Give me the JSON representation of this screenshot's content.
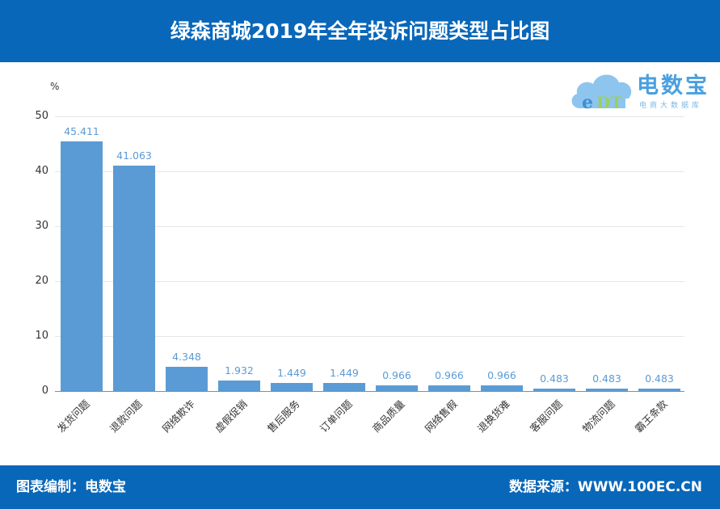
{
  "header": {
    "title": "绿森商城2019年全年投诉问题类型占比图"
  },
  "logo": {
    "mark": "eDT",
    "name": "电数宝",
    "subtitle": "电商大数据库"
  },
  "footer": {
    "left": "图表编制：电数宝",
    "right": "数据来源：WWW.100EC.CN"
  },
  "chart_data": {
    "type": "bar",
    "title": "绿森商城2019年全年投诉问题类型占比图",
    "xlabel": "",
    "ylabel": "%",
    "ylim": [
      0,
      50
    ],
    "yticks": [
      0,
      10,
      20,
      30,
      40,
      50
    ],
    "grid": true,
    "legend": "none",
    "categories": [
      "发货问题",
      "退款问题",
      "网络欺诈",
      "虚假促销",
      "售后服务",
      "订单问题",
      "商品质量",
      "网络售假",
      "退换货难",
      "客服问题",
      "物流问题",
      "霸王条款"
    ],
    "values": [
      45.411,
      41.063,
      4.348,
      1.932,
      1.449,
      1.449,
      0.966,
      0.966,
      0.966,
      0.483,
      0.483,
      0.483
    ],
    "value_labels": [
      "45.411",
      "41.063",
      "4.348",
      "1.932",
      "1.449",
      "1.449",
      "0.966",
      "0.966",
      "0.966",
      "0.483",
      "0.483",
      "0.483"
    ],
    "colors": {
      "bar": "#5b9bd5",
      "label": "#5b9bd5",
      "header": "#0967b9"
    }
  }
}
